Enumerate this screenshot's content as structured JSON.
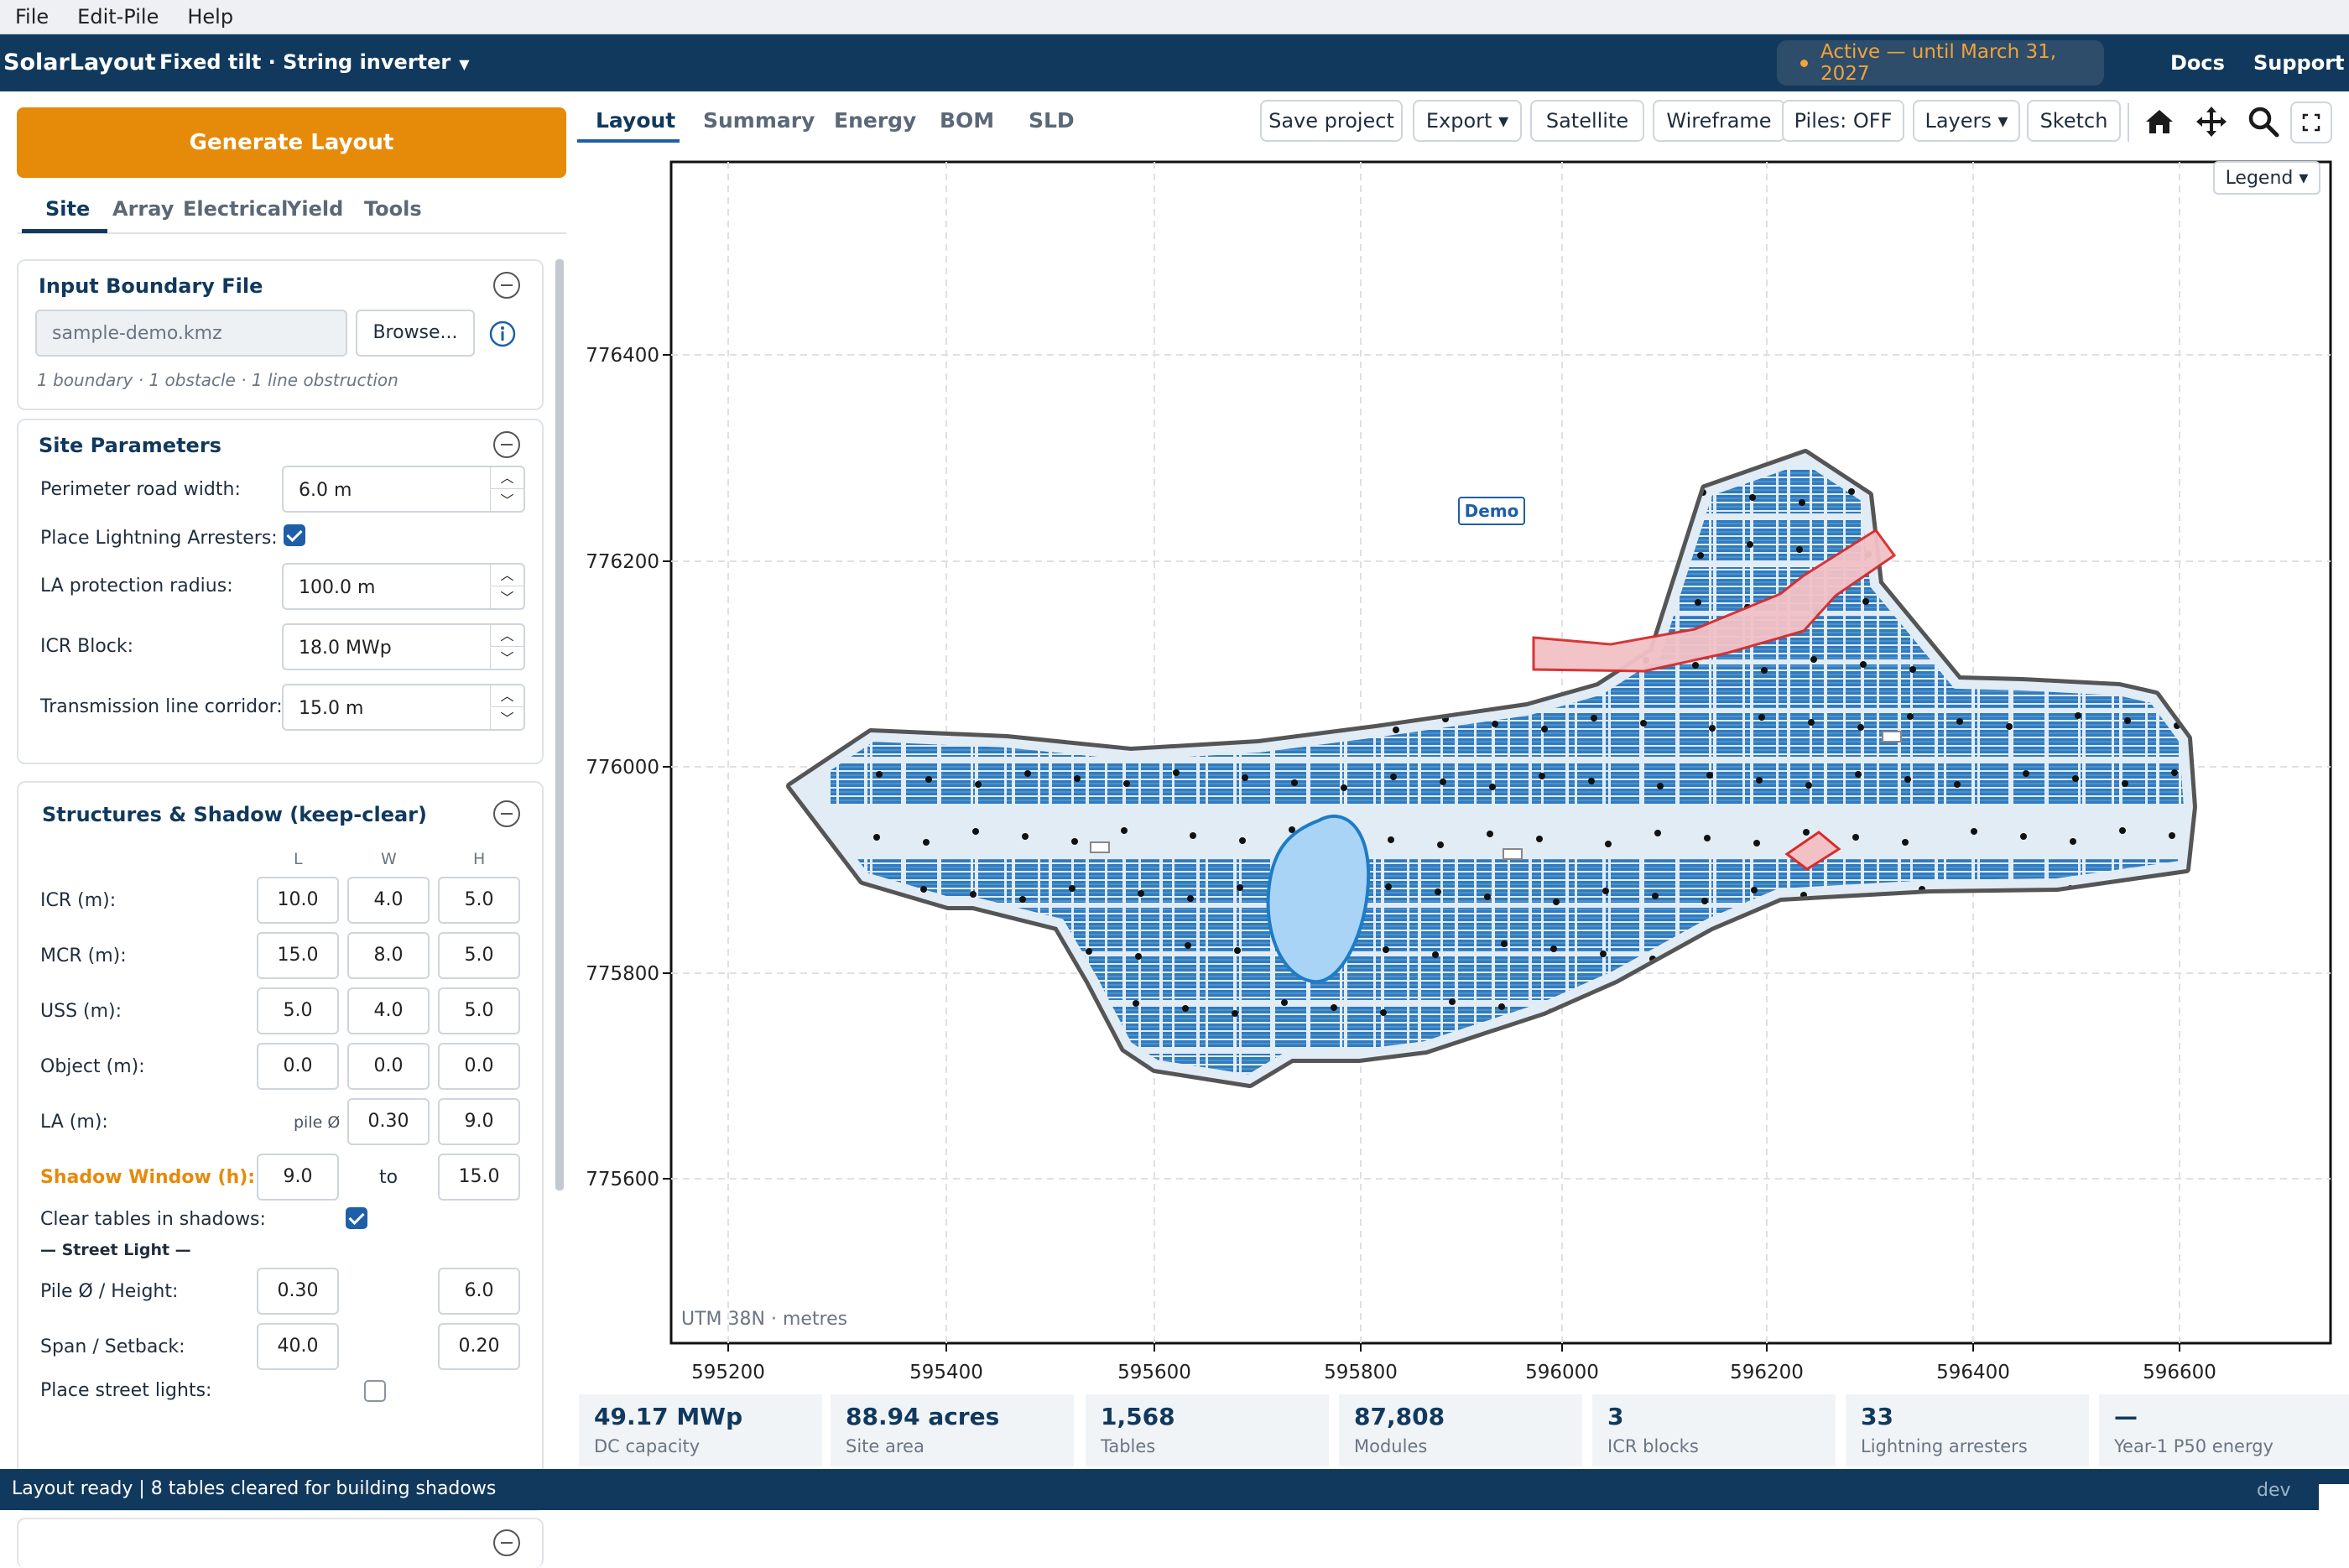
{
  "menu": [
    "File",
    "Edit-Pile",
    "Help"
  ],
  "header": {
    "app_name": "SolarLayout",
    "mode": "Fixed tilt · String inverter",
    "license": "Active — until March 31, 2027",
    "docs": "Docs",
    "support": "Support"
  },
  "left": {
    "generate_label": "Generate Layout",
    "tabs": [
      "Site",
      "Array",
      "Electrical",
      "Yield",
      "Tools"
    ],
    "boundary": {
      "title": "Input Boundary File",
      "file": "sample-demo.kmz",
      "browse": "Browse...",
      "summary": "1 boundary · 1 obstacle · 1 line obstruction"
    },
    "site": {
      "title": "Site Parameters",
      "perimeter_label": "Perimeter road width:",
      "perimeter_value": "6.0  m",
      "la_label": "Place Lightning Arresters:",
      "la_radius_label": "LA protection radius:",
      "la_radius_value": "100.0  m",
      "icr_label": "ICR Block:",
      "icr_value": "18.0  MWp",
      "corridor_label": "Transmission line corridor:",
      "corridor_value": "15.0  m"
    },
    "structures": {
      "title": "Structures & Shadow (keep-clear)",
      "col_l": "L",
      "col_w": "W",
      "col_h": "H",
      "icr_label": "ICR (m):",
      "icr": [
        "10.0",
        "4.0",
        "5.0"
      ],
      "mcr_label": "MCR (m):",
      "mcr": [
        "15.0",
        "8.0",
        "5.0"
      ],
      "uss_label": "USS (m):",
      "uss": [
        "5.0",
        "4.0",
        "5.0"
      ],
      "object_label": "Object (m):",
      "object": [
        "0.0",
        "0.0",
        "0.0"
      ],
      "la_label": "LA (m):",
      "la_pile": "pile Ø",
      "la": [
        "0.30",
        "9.0"
      ],
      "shadow_label": "Shadow Window (h):",
      "shadow_from": "9.0",
      "shadow_to_word": "to",
      "shadow_to": "15.0",
      "clear_label": "Clear tables in shadows:",
      "street_header": "— Street Light —",
      "pile_label": "Pile Ø / Height:",
      "pile": [
        "0.30",
        "6.0"
      ],
      "span_label": "Span / Setback:",
      "span": [
        "40.0",
        "0.20"
      ],
      "place_street_label": "Place street lights:"
    }
  },
  "view_tabs": [
    "Layout",
    "Summary",
    "Energy",
    "BOM",
    "SLD"
  ],
  "toolbar": {
    "save": "Save project",
    "export": "Export ▾",
    "satellite": "Satellite",
    "wireframe": "Wireframe",
    "piles": "Piles: OFF",
    "layers": "Layers ▾",
    "sketch": "Sketch"
  },
  "map": {
    "legend": "Legend ▾",
    "demo": "Demo",
    "crs_note": "UTM 38N · metres",
    "x_ticks": [
      "595200",
      "595400",
      "595600",
      "595800",
      "596000",
      "596200",
      "596400",
      "596600"
    ],
    "y_ticks": [
      "776400",
      "776200",
      "776000",
      "775800",
      "775600"
    ]
  },
  "stats": [
    {
      "value": "49.17 MWp",
      "label": "DC capacity"
    },
    {
      "value": "88.94 acres",
      "label": "Site area"
    },
    {
      "value": "1,568",
      "label": "Tables"
    },
    {
      "value": "87,808",
      "label": "Modules"
    },
    {
      "value": "3",
      "label": "ICR blocks"
    },
    {
      "value": "33",
      "label": "Lightning arresters"
    },
    {
      "value": "—",
      "label": "Year-1 P50 energy"
    }
  ],
  "status": {
    "message": "Layout ready | 8 tables cleared for building shadows",
    "env": "dev"
  },
  "colors": {
    "header_bg": "#11395e",
    "accent_orange": "#e68a0a",
    "table_blue": "#2f7bbf",
    "obstacle_red": "#d92b2b",
    "pond_blue": "#a9d4f5"
  }
}
